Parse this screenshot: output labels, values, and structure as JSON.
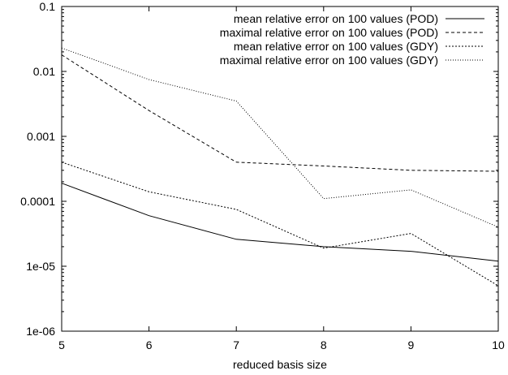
{
  "chart_data": {
    "type": "line",
    "xlabel": "reduced basis size",
    "ylabel": "",
    "x": [
      5,
      6,
      7,
      8,
      9,
      10
    ],
    "xlim": [
      5,
      10
    ],
    "ylim": [
      1e-06,
      0.1
    ],
    "yscale": "log",
    "x_ticks": [
      5,
      6,
      7,
      8,
      9,
      10
    ],
    "y_ticks": [
      {
        "value": 1e-06,
        "label": "1e-06"
      },
      {
        "value": 1e-05,
        "label": "1e-05"
      },
      {
        "value": 0.0001,
        "label": "0.0001"
      },
      {
        "value": 0.001,
        "label": "0.001"
      },
      {
        "value": 0.01,
        "label": "0.01"
      },
      {
        "value": 0.1,
        "label": "0.1"
      }
    ],
    "grid": false,
    "legend_position": "top-right",
    "series": [
      {
        "name": "mean relative error on 100 values (POD)",
        "dash": "solid",
        "values": [
          0.00019,
          6e-05,
          2.6e-05,
          2e-05,
          1.7e-05,
          1.2e-05
        ]
      },
      {
        "name": "maximal relative error on 100 values (POD)",
        "dash": "dashed",
        "values": [
          0.018,
          0.0025,
          0.0004,
          0.00035,
          0.0003,
          0.00029
        ]
      },
      {
        "name": "mean relative error on 100 values (GDY)",
        "dash": "dotted-dense",
        "values": [
          0.0004,
          0.00014,
          7.5e-05,
          1.9e-05,
          3.2e-05,
          5e-06
        ]
      },
      {
        "name": "maximal relative error on 100 values (GDY)",
        "dash": "dotted",
        "values": [
          0.023,
          0.0075,
          0.0035,
          0.00011,
          0.00015,
          4e-05
        ]
      }
    ]
  }
}
